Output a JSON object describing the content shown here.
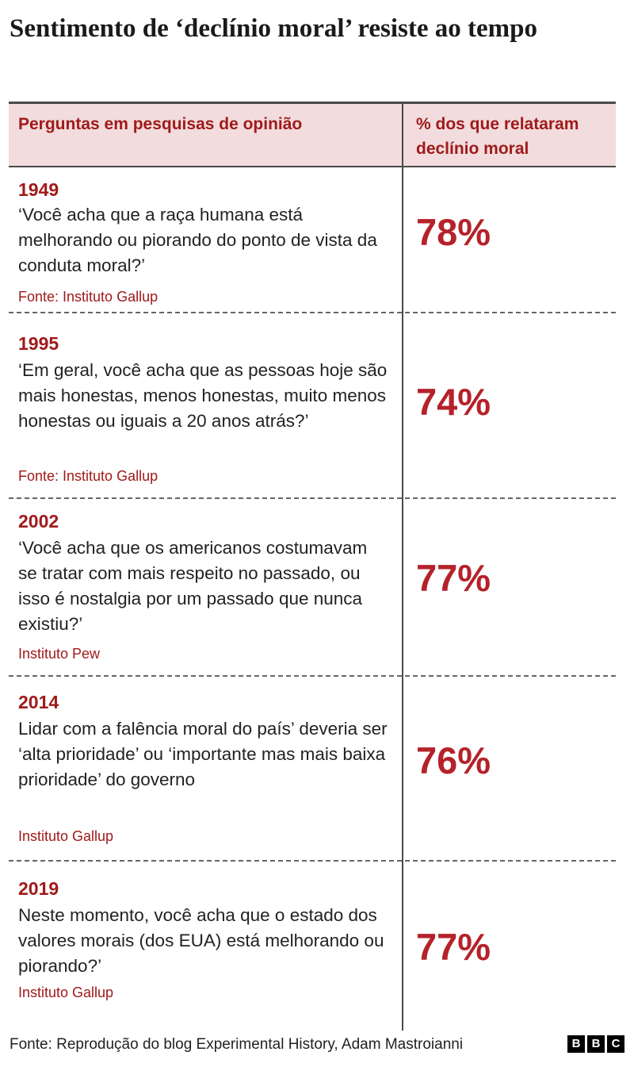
{
  "title": "Sentimento de ‘declínio moral’ resiste ao tempo",
  "table": {
    "header_question": "Perguntas em pesquisas de opinião",
    "header_percent": "% dos que relataram declínio moral"
  },
  "chart_data": {
    "type": "table",
    "title": "Sentimento de ‘declínio moral’ resiste ao tempo",
    "columns": [
      "Perguntas em pesquisas de opinião",
      "% dos que relataram declínio moral"
    ],
    "rows": [
      {
        "year": "1949",
        "question": "‘Você acha que a raça humana está melhorando ou piorando do ponto de vista da conduta moral?’",
        "source": "Fonte: Instituto Gallup",
        "value": 78,
        "label": "78%"
      },
      {
        "year": "1995",
        "question": "‘Em geral, você acha que as pessoas hoje são mais honestas, menos honestas, muito menos honestas ou iguais a 20 anos atrás?’",
        "source": "Fonte: Instituto Gallup",
        "value": 74,
        "label": "74%"
      },
      {
        "year": "2002",
        "question": "‘Você acha que os americanos costumavam se tratar com mais respeito no passado, ou isso é nostalgia por um passado que nunca existiu?’",
        "source": "Instituto Pew",
        "value": 77,
        "label": "77%"
      },
      {
        "year": "2014",
        "question": "Lidar com a falência moral do país’ deveria ser ‘alta prioridade’ ou ‘importante mas mais baixa prioridade’ do governo",
        "source": "Instituto Gallup",
        "value": 76,
        "label": "76%"
      },
      {
        "year": "2019",
        "question": "Neste momento, você acha que o estado dos valores morais (dos EUA) está melhorando ou piorando?’",
        "source": "Instituto Gallup",
        "value": 77,
        "label": "77%"
      }
    ]
  },
  "footer": {
    "source": "Fonte: Reprodução do blog Experimental History, Adam Mastroianni",
    "logo_letters": [
      "B",
      "B",
      "C"
    ]
  }
}
